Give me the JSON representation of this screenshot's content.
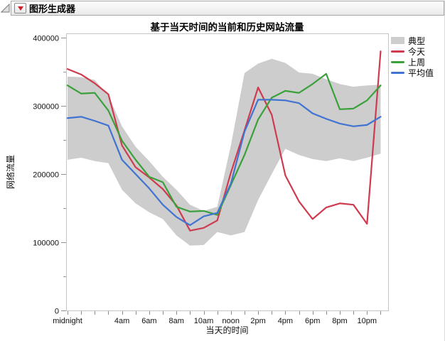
{
  "header": {
    "title": "图形生成器",
    "icons": {
      "disclosure": "open-disclosure-triangle",
      "menu": "red-triangle-menu"
    }
  },
  "chart_data": {
    "type": "area+line",
    "title": "基于当天时间的当前和历史网站流量",
    "x_hours": [
      0,
      1,
      2,
      3,
      4,
      5,
      6,
      7,
      8,
      9,
      10,
      11,
      12,
      13,
      14,
      15,
      16,
      17,
      18,
      19,
      20,
      21,
      22,
      23
    ],
    "x_axis": {
      "title": "当天的时间",
      "tick_hours": [
        0,
        4,
        6,
        8,
        10,
        12,
        14,
        16,
        18,
        20,
        22
      ],
      "tick_labels": [
        "midnight",
        "4am",
        "6am",
        "8am",
        "10am",
        "noon",
        "2pm",
        "4pm",
        "6pm",
        "8pm",
        "10pm"
      ]
    },
    "y_axis": {
      "title": "网络流量",
      "min": 0,
      "max": 400000,
      "major_ticks": [
        0,
        100000,
        200000,
        300000,
        400000
      ],
      "tick_labels": [
        "0",
        "100000",
        "200000",
        "300000",
        "400000"
      ],
      "minor_step": 50000
    },
    "band": {
      "key": "typical",
      "name": "典型",
      "color": "#CDCDCD",
      "upper": [
        343000,
        342000,
        338000,
        315000,
        270000,
        240000,
        219000,
        196000,
        177000,
        155000,
        146000,
        152000,
        242000,
        348000,
        362000,
        369000,
        363000,
        349000,
        347000,
        339000,
        332000,
        328000,
        330000,
        331000
      ],
      "lower": [
        221000,
        224000,
        219000,
        216000,
        177000,
        157000,
        144000,
        134000,
        110000,
        95000,
        96000,
        115000,
        110000,
        115000,
        162000,
        200000,
        237000,
        228000,
        222000,
        219000,
        223000,
        219000,
        224000,
        230000
      ]
    },
    "series": [
      {
        "key": "today",
        "name": "今天",
        "color": "#CE3B4E",
        "values": [
          354000,
          346000,
          333000,
          317000,
          242000,
          210000,
          195000,
          178000,
          154000,
          117000,
          121000,
          132000,
          202000,
          264000,
          327000,
          287000,
          198000,
          160000,
          134000,
          151000,
          157000,
          155000,
          127000,
          380000
        ]
      },
      {
        "key": "last-week",
        "name": "上周",
        "color": "#3AA13A",
        "values": [
          330000,
          318000,
          319000,
          293000,
          249000,
          221000,
          196000,
          188000,
          152000,
          145000,
          146000,
          140000,
          184000,
          228000,
          280000,
          312000,
          322000,
          319000,
          332000,
          347000,
          295000,
          296000,
          308000,
          330000
        ]
      },
      {
        "key": "average",
        "name": "平均值",
        "color": "#4173D2",
        "values": [
          282000,
          284000,
          278000,
          271000,
          221000,
          200000,
          179000,
          155000,
          137000,
          125000,
          138000,
          143000,
          186000,
          262000,
          309000,
          309000,
          308000,
          304000,
          289000,
          281000,
          274000,
          270000,
          272000,
          284000
        ]
      }
    ],
    "legend_position": "right",
    "grid": false
  }
}
